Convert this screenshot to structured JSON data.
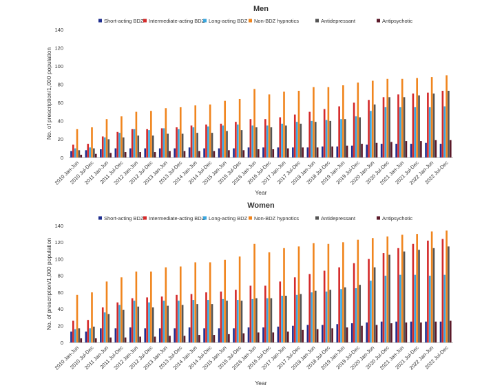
{
  "colors": {
    "Short-acting BDZ": "#1f2e8f",
    "Intermediate-acting BDZ": "#d42a2a",
    "Long-acting BDZ": "#3aa6dd",
    "Non-BDZ hypnotics": "#f0851e",
    "Antidepressant": "#555555",
    "Antipsychotic": "#5b1a2a"
  },
  "chart_data": [
    {
      "type": "bar",
      "title": "Men",
      "xlabel": "Year",
      "ylabel": "No. of prescription/1,000 population",
      "ylim": [
        0,
        140
      ],
      "yticks": [
        0,
        20,
        40,
        60,
        80,
        100,
        120,
        140
      ],
      "categories": [
        "2010 Jan-Jun",
        "2010 Jul-Dec",
        "2011 Jan-Jun",
        "2011 Jul-Dec",
        "2012 Jan-Jun",
        "2012 Jul-Dec",
        "2013 Jan-Jun",
        "2013 Jul-Dec",
        "2014 Jan-Jun",
        "2014 Jul-Dec",
        "2015 Jan-Jun",
        "2015 Jul-Dec",
        "2016 Jan-Jun",
        "2016 Jul-Dec",
        "2017 Jan-Jun",
        "2017 Jul-Dec",
        "2018 Jan-Jun",
        "2018 Jul-Dec",
        "2019 Jan-Jun",
        "2019 Jul-Dec",
        "2020 Jan-Jun",
        "2020 Jul-Dec",
        "2021 Jan-Jun",
        "2021 Jul-Dec",
        "2022 Jan-Jun",
        "2022 Jul-Dec"
      ],
      "series": [
        {
          "name": "Short-acting BDZ",
          "values": [
            7,
            8,
            9,
            10,
            10,
            10,
            10,
            10,
            11,
            10,
            10,
            10,
            11,
            11,
            11,
            11,
            11,
            12,
            12,
            13,
            14,
            15,
            15,
            15,
            16,
            15
          ]
        },
        {
          "name": "Intermediate-acting BDZ",
          "values": [
            14,
            15,
            23,
            28,
            31,
            31,
            32,
            33,
            35,
            36,
            37,
            39,
            42,
            42,
            44,
            47,
            50,
            53,
            56,
            60,
            63,
            66,
            69,
            70,
            71,
            73
          ]
        },
        {
          "name": "Long-acting BDZ",
          "values": [
            10,
            11,
            22,
            27,
            31,
            30,
            32,
            31,
            33,
            34,
            35,
            36,
            35,
            35,
            37,
            39,
            40,
            41,
            42,
            45,
            51,
            55,
            55,
            55,
            55,
            56
          ]
        },
        {
          "name": "Non-BDZ hypnotics",
          "values": [
            31,
            33,
            42,
            45,
            50,
            51,
            54,
            55,
            57,
            58,
            62,
            64,
            75,
            69,
            72,
            73,
            77,
            77,
            79,
            82,
            84,
            86,
            86,
            87,
            88,
            90
          ]
        },
        {
          "name": "Antidepressant",
          "values": [
            8,
            10,
            20,
            22,
            24,
            24,
            26,
            26,
            27,
            27,
            29,
            30,
            33,
            33,
            35,
            37,
            39,
            40,
            42,
            44,
            58,
            66,
            66,
            68,
            70,
            73
          ]
        },
        {
          "name": "Antipsychotic",
          "values": [
            3,
            4,
            5,
            6,
            6,
            6,
            7,
            7,
            7,
            7,
            8,
            8,
            9,
            9,
            10,
            11,
            11,
            12,
            13,
            15,
            16,
            17,
            18,
            18,
            19,
            19
          ]
        }
      ],
      "legend": "top"
    },
    {
      "type": "bar",
      "title": "Women",
      "xlabel": "Year",
      "ylabel": "No. of prescription/1,000 population",
      "ylim": [
        0,
        140
      ],
      "yticks": [
        0,
        20,
        40,
        60,
        80,
        100,
        120,
        140
      ],
      "categories": [
        "2010 Jan-Jun",
        "2010 Jul-Dec",
        "2011 Jan-Jun",
        "2011 Jul-Dec",
        "2012 Jan-Jun",
        "2012 Jul-Dec",
        "2013 Jan-Jun",
        "2013 Jul-Dec",
        "2014 Jan-Jun",
        "2014 Jul-Dec",
        "2015 Jan-Jun",
        "2015 Jul-Dec",
        "2016 Jan-Jun",
        "2016 Jul-Dec",
        "2017 Jan-Jun",
        "2017 Jul-Dec",
        "2018 Jan-Jun",
        "2018 Jul-Dec",
        "2019 Jan-Jun",
        "2019 Jul-Dec",
        "2020 Jan-Jun",
        "2020 Jul-Dec",
        "2021 Jan-Jun",
        "2021 Jul-Dec",
        "2022 Jan-Jun",
        "2022 Jul-Dec"
      ],
      "series": [
        {
          "name": "Short-acting BDZ",
          "values": [
            13,
            13,
            17,
            17,
            18,
            17,
            17,
            17,
            18,
            17,
            17,
            17,
            18,
            18,
            19,
            20,
            21,
            21,
            22,
            23,
            24,
            25,
            25,
            25,
            25,
            25
          ]
        },
        {
          "name": "Intermediate-acting BDZ",
          "values": [
            26,
            27,
            42,
            48,
            53,
            54,
            55,
            57,
            58,
            60,
            61,
            63,
            68,
            68,
            73,
            78,
            82,
            86,
            90,
            95,
            100,
            107,
            113,
            118,
            122,
            124
          ]
        },
        {
          "name": "Long-acting BDZ",
          "values": [
            16,
            17,
            36,
            45,
            50,
            48,
            50,
            50,
            51,
            51,
            52,
            51,
            52,
            53,
            56,
            57,
            60,
            61,
            64,
            65,
            74,
            80,
            81,
            81,
            80,
            81
          ]
        },
        {
          "name": "Non-BDZ hypnotics",
          "values": [
            57,
            60,
            73,
            78,
            85,
            85,
            90,
            91,
            96,
            96,
            99,
            103,
            118,
            108,
            113,
            115,
            119,
            118,
            120,
            123,
            125,
            127,
            129,
            130,
            133,
            134
          ]
        },
        {
          "name": "Antidepressant",
          "values": [
            17,
            19,
            34,
            39,
            43,
            42,
            44,
            45,
            46,
            46,
            50,
            50,
            53,
            53,
            56,
            58,
            62,
            63,
            66,
            69,
            90,
            105,
            109,
            111,
            113,
            115
          ]
        },
        {
          "name": "Antipsychotic",
          "values": [
            5,
            5,
            6,
            6,
            7,
            7,
            8,
            8,
            9,
            9,
            10,
            11,
            12,
            12,
            13,
            15,
            16,
            17,
            18,
            20,
            21,
            23,
            24,
            24,
            25,
            26
          ]
        }
      ],
      "legend": "top"
    }
  ]
}
